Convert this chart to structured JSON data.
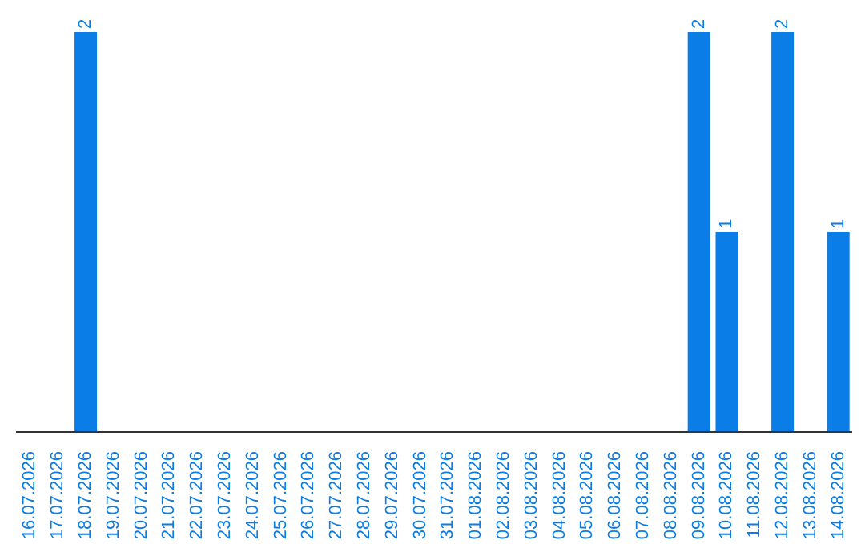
{
  "chart_data": {
    "type": "bar",
    "categories": [
      "16.07.2026",
      "17.07.2026",
      "18.07.2026",
      "19.07.2026",
      "20.07.2026",
      "21.07.2026",
      "22.07.2026",
      "23.07.2026",
      "24.07.2026",
      "25.07.2026",
      "26.07.2026",
      "27.07.2026",
      "28.07.2026",
      "29.07.2026",
      "30.07.2026",
      "31.07.2026",
      "01.08.2026",
      "02.08.2026",
      "03.08.2026",
      "04.08.2026",
      "05.08.2026",
      "06.08.2026",
      "07.08.2026",
      "08.08.2026",
      "09.08.2026",
      "10.08.2026",
      "11.08.2026",
      "12.08.2026",
      "13.08.2026",
      "14.08.2026"
    ],
    "values": [
      0,
      0,
      2,
      0,
      0,
      0,
      0,
      0,
      0,
      0,
      0,
      0,
      0,
      0,
      0,
      0,
      0,
      0,
      0,
      0,
      0,
      0,
      0,
      0,
      2,
      1,
      0,
      2,
      0,
      1
    ],
    "value_labels": [
      null,
      null,
      "2",
      null,
      null,
      null,
      null,
      null,
      null,
      null,
      null,
      null,
      null,
      null,
      null,
      null,
      null,
      null,
      null,
      null,
      null,
      null,
      null,
      null,
      "2",
      "1",
      null,
      "2",
      null,
      "1"
    ],
    "color": "#0a7ee6",
    "tick_labels": "x"
  }
}
